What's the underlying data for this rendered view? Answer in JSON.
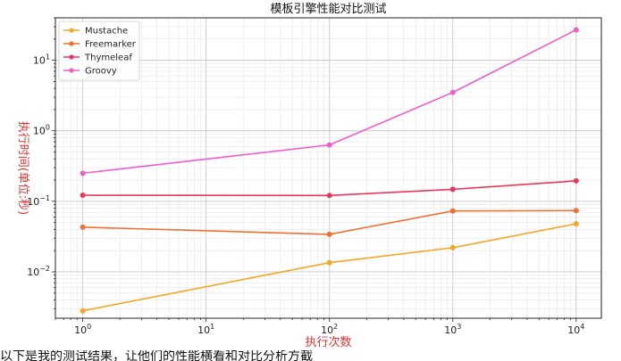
{
  "chart_data": {
    "type": "line",
    "title": "模板引擎性能对比测试",
    "xlabel": "执行次数",
    "ylabel": "执行时间(单位:秒)",
    "x": [
      1,
      100,
      1000,
      10000
    ],
    "x_scale": "log",
    "y_scale": "log",
    "xlim": [
      0.6,
      16000
    ],
    "ylim": [
      0.0022,
      40
    ],
    "x_ticks": [
      {
        "value": 1,
        "base": "10",
        "exp": "0"
      },
      {
        "value": 10,
        "base": "10",
        "exp": "1"
      },
      {
        "value": 100,
        "base": "10",
        "exp": "2"
      },
      {
        "value": 1000,
        "base": "10",
        "exp": "3"
      },
      {
        "value": 10000,
        "base": "10",
        "exp": "4"
      }
    ],
    "y_ticks": [
      {
        "value": 0.01,
        "base": "10",
        "exp": "−2"
      },
      {
        "value": 0.1,
        "base": "10",
        "exp": "−1"
      },
      {
        "value": 1,
        "base": "10",
        "exp": "0"
      },
      {
        "value": 10,
        "base": "10",
        "exp": "1"
      }
    ],
    "grid": true,
    "legend_position": "top-left",
    "series": [
      {
        "name": "Mustache",
        "color": "#f5a623",
        "values": [
          0.0028,
          0.0135,
          0.022,
          0.048
        ]
      },
      {
        "name": "Freemarker",
        "color": "#f07033",
        "values": [
          0.043,
          0.034,
          0.073,
          0.074
        ]
      },
      {
        "name": "Thymeleaf",
        "color": "#e8375a",
        "values": [
          0.122,
          0.121,
          0.148,
          0.195
        ]
      },
      {
        "name": "Groovy",
        "color": "#f05cc8",
        "values": [
          0.25,
          0.63,
          3.5,
          27
        ]
      }
    ]
  },
  "caption": "以下是我的测试结果，让他们的性能横看和对比分析方截"
}
